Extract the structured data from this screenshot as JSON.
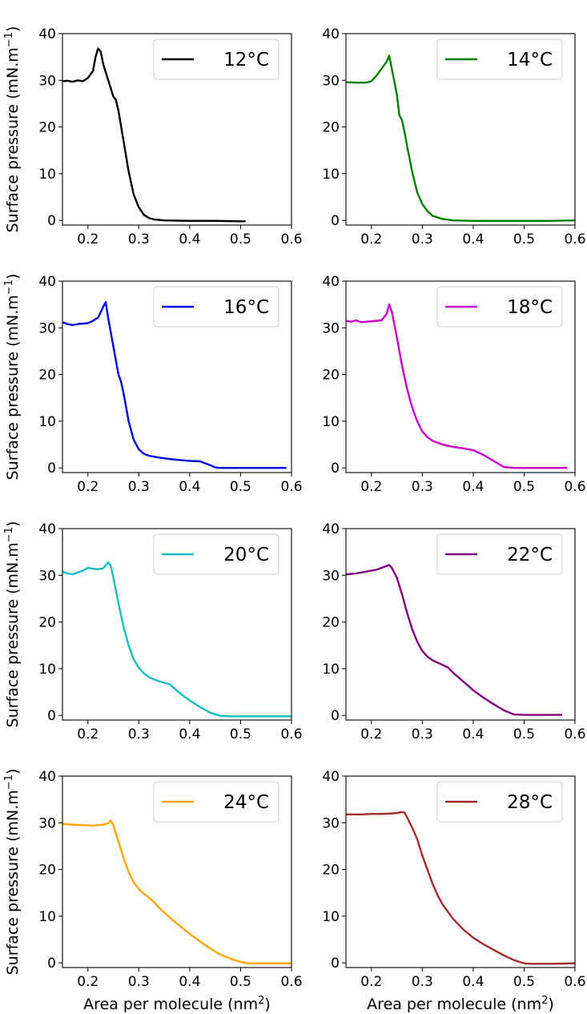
{
  "chart_data": [
    {
      "type": "line",
      "ylabel": "Surface pressure (mN.m",
      "ylabel_sup": "−1",
      "ylabel_close": ")",
      "xlabel": "",
      "xlabel_sup": "",
      "xlabel_close": "",
      "xlim": [
        0.15,
        0.6
      ],
      "ylim": [
        -1,
        40
      ],
      "xticks": [
        "0.2",
        "0.3",
        "0.4",
        "0.5",
        "0.6"
      ],
      "yticks": [
        "0",
        "10",
        "20",
        "30",
        "40"
      ],
      "legend_position": "top-right",
      "series": [
        {
          "name": "12°C",
          "color": "#000000",
          "x": [
            0.15,
            0.16,
            0.17,
            0.18,
            0.19,
            0.2,
            0.21,
            0.215,
            0.22,
            0.225,
            0.23,
            0.24,
            0.25,
            0.255,
            0.26,
            0.27,
            0.28,
            0.29,
            0.3,
            0.31,
            0.32,
            0.33,
            0.35,
            0.4,
            0.45,
            0.5,
            0.51
          ],
          "y": [
            29.8,
            29.9,
            29.7,
            30.0,
            29.8,
            30.5,
            32.0,
            35.0,
            36.8,
            36.2,
            33.5,
            30.0,
            26.5,
            25.8,
            23.5,
            17.0,
            10.5,
            5.5,
            2.8,
            1.2,
            0.5,
            0.2,
            0.0,
            -0.1,
            -0.1,
            -0.2,
            -0.2
          ]
        }
      ]
    },
    {
      "type": "line",
      "ylabel": "",
      "ylabel_sup": "",
      "ylabel_close": "",
      "xlabel": "",
      "xlabel_sup": "",
      "xlabel_close": "",
      "xlim": [
        0.15,
        0.6
      ],
      "ylim": [
        -1,
        40
      ],
      "xticks": [
        "0.2",
        "0.3",
        "0.4",
        "0.5",
        "0.6"
      ],
      "yticks": [
        "0",
        "10",
        "20",
        "30",
        "40"
      ],
      "legend_position": "top-right",
      "series": [
        {
          "name": "14°C",
          "color": "#008000",
          "x": [
            0.15,
            0.17,
            0.19,
            0.2,
            0.21,
            0.22,
            0.23,
            0.235,
            0.24,
            0.25,
            0.255,
            0.26,
            0.265,
            0.27,
            0.28,
            0.29,
            0.3,
            0.31,
            0.32,
            0.34,
            0.36,
            0.4,
            0.45,
            0.5,
            0.55,
            0.6
          ],
          "y": [
            29.6,
            29.5,
            29.5,
            29.8,
            31.0,
            32.5,
            34.0,
            35.3,
            32.5,
            27.0,
            22.5,
            21.5,
            19.0,
            16.0,
            10.5,
            6.0,
            3.5,
            2.0,
            1.0,
            0.3,
            0.0,
            -0.1,
            -0.1,
            -0.1,
            -0.1,
            0.0
          ]
        }
      ]
    },
    {
      "type": "line",
      "ylabel": "Surface pressure (mN.m",
      "ylabel_sup": "−1",
      "ylabel_close": ")",
      "xlabel": "",
      "xlabel_sup": "",
      "xlabel_close": "",
      "xlim": [
        0.15,
        0.6
      ],
      "ylim": [
        -1,
        40
      ],
      "xticks": [
        "0.2",
        "0.3",
        "0.4",
        "0.5",
        "0.6"
      ],
      "yticks": [
        "0",
        "10",
        "20",
        "30",
        "40"
      ],
      "legend_position": "top-right",
      "series": [
        {
          "name": "16°C",
          "color": "#0000e6",
          "x": [
            0.15,
            0.16,
            0.17,
            0.18,
            0.2,
            0.21,
            0.22,
            0.23,
            0.235,
            0.24,
            0.25,
            0.26,
            0.265,
            0.27,
            0.28,
            0.29,
            0.3,
            0.31,
            0.32,
            0.34,
            0.36,
            0.38,
            0.4,
            0.42,
            0.44,
            0.45,
            0.46,
            0.5,
            0.55,
            0.59
          ],
          "y": [
            31.2,
            30.8,
            30.6,
            30.8,
            31.0,
            31.5,
            32.2,
            34.5,
            35.5,
            32.0,
            26.0,
            20.0,
            18.5,
            16.0,
            10.0,
            6.0,
            4.0,
            3.0,
            2.6,
            2.2,
            1.9,
            1.7,
            1.5,
            1.4,
            0.6,
            0.1,
            0.0,
            0.0,
            0.0,
            0.0
          ]
        }
      ]
    },
    {
      "type": "line",
      "ylabel": "",
      "ylabel_sup": "",
      "ylabel_close": "",
      "xlabel": "",
      "xlabel_sup": "",
      "xlabel_close": "",
      "xlim": [
        0.15,
        0.6
      ],
      "ylim": [
        -1,
        40
      ],
      "xticks": [
        "0.2",
        "0.3",
        "0.4",
        "0.5",
        "0.6"
      ],
      "yticks": [
        "0",
        "10",
        "20",
        "30",
        "40"
      ],
      "legend_position": "top-right",
      "series": [
        {
          "name": "18°C",
          "color": "#cc00cc",
          "x": [
            0.15,
            0.16,
            0.17,
            0.18,
            0.2,
            0.22,
            0.23,
            0.235,
            0.24,
            0.25,
            0.26,
            0.27,
            0.28,
            0.29,
            0.3,
            0.31,
            0.32,
            0.34,
            0.36,
            0.38,
            0.4,
            0.42,
            0.44,
            0.46,
            0.48,
            0.52,
            0.56,
            0.585
          ],
          "y": [
            31.5,
            31.3,
            31.6,
            31.2,
            31.4,
            31.6,
            33.0,
            35.0,
            33.5,
            28.0,
            22.0,
            17.0,
            13.0,
            10.0,
            7.8,
            6.6,
            5.8,
            5.0,
            4.5,
            4.2,
            3.8,
            2.8,
            1.5,
            0.2,
            0.0,
            0.0,
            0.0,
            0.0
          ]
        }
      ]
    },
    {
      "type": "line",
      "ylabel": "Surface pressure (mN.m",
      "ylabel_sup": "−1",
      "ylabel_close": ")",
      "xlabel": "",
      "xlabel_sup": "",
      "xlabel_close": "",
      "xlim": [
        0.15,
        0.6
      ],
      "ylim": [
        -1,
        40
      ],
      "xticks": [
        "0.2",
        "0.3",
        "0.4",
        "0.5",
        "0.6"
      ],
      "yticks": [
        "0",
        "10",
        "20",
        "30",
        "40"
      ],
      "legend_position": "top-right",
      "series": [
        {
          "name": "20°C",
          "color": "#17bebf",
          "x": [
            0.15,
            0.16,
            0.17,
            0.18,
            0.19,
            0.2,
            0.21,
            0.22,
            0.23,
            0.24,
            0.245,
            0.25,
            0.26,
            0.27,
            0.28,
            0.29,
            0.3,
            0.31,
            0.32,
            0.33,
            0.34,
            0.35,
            0.36,
            0.37,
            0.38,
            0.4,
            0.42,
            0.44,
            0.46,
            0.48,
            0.52,
            0.56,
            0.6
          ],
          "y": [
            30.8,
            30.4,
            30.2,
            30.6,
            31.0,
            31.6,
            31.4,
            31.3,
            31.5,
            32.8,
            32.0,
            29.5,
            24.0,
            19.0,
            15.0,
            12.0,
            10.2,
            9.0,
            8.2,
            7.7,
            7.3,
            7.0,
            6.7,
            5.8,
            4.8,
            3.2,
            1.8,
            0.6,
            -0.1,
            -0.2,
            -0.2,
            -0.2,
            -0.2
          ]
        }
      ]
    },
    {
      "type": "line",
      "ylabel": "",
      "ylabel_sup": "",
      "ylabel_close": "",
      "xlabel": "",
      "xlabel_sup": "",
      "xlabel_close": "",
      "xlim": [
        0.15,
        0.6
      ],
      "ylim": [
        -1,
        40
      ],
      "xticks": [
        "0.2",
        "0.3",
        "0.4",
        "0.5",
        "0.6"
      ],
      "yticks": [
        "0",
        "10",
        "20",
        "30",
        "40"
      ],
      "legend_position": "top-right",
      "series": [
        {
          "name": "22°C",
          "color": "#800080",
          "x": [
            0.15,
            0.17,
            0.19,
            0.21,
            0.22,
            0.23,
            0.235,
            0.24,
            0.25,
            0.26,
            0.27,
            0.28,
            0.29,
            0.3,
            0.31,
            0.32,
            0.33,
            0.34,
            0.35,
            0.36,
            0.38,
            0.4,
            0.42,
            0.44,
            0.46,
            0.48,
            0.5,
            0.54,
            0.575
          ],
          "y": [
            30.2,
            30.4,
            30.8,
            31.2,
            31.6,
            32.0,
            32.2,
            31.6,
            29.5,
            26.0,
            22.0,
            18.5,
            15.8,
            13.8,
            12.6,
            11.8,
            11.3,
            10.8,
            10.3,
            9.2,
            7.3,
            5.4,
            3.8,
            2.4,
            1.1,
            0.2,
            0.1,
            0.1,
            0.1
          ]
        }
      ]
    },
    {
      "type": "line",
      "ylabel": "Surface pressure (mN.m",
      "ylabel_sup": "−1",
      "ylabel_close": ")",
      "xlabel": "Area per molecule (nm",
      "xlabel_sup": "2",
      "xlabel_close": ")",
      "xlim": [
        0.15,
        0.6
      ],
      "ylim": [
        -1,
        40
      ],
      "xticks": [
        "0.2",
        "0.3",
        "0.4",
        "0.5",
        "0.6"
      ],
      "yticks": [
        "0",
        "10",
        "20",
        "30",
        "40"
      ],
      "legend_position": "top-right",
      "series": [
        {
          "name": "24°C",
          "color": "#ffa500",
          "x": [
            0.15,
            0.17,
            0.19,
            0.21,
            0.22,
            0.23,
            0.24,
            0.245,
            0.25,
            0.26,
            0.27,
            0.28,
            0.29,
            0.3,
            0.31,
            0.32,
            0.33,
            0.34,
            0.36,
            0.38,
            0.4,
            0.42,
            0.44,
            0.46,
            0.48,
            0.5,
            0.515,
            0.55,
            0.6
          ],
          "y": [
            29.8,
            29.6,
            29.5,
            29.4,
            29.5,
            29.6,
            29.9,
            30.5,
            29.5,
            26.0,
            22.5,
            19.5,
            17.2,
            15.8,
            14.8,
            14.0,
            13.0,
            11.8,
            9.8,
            8.0,
            6.2,
            4.6,
            3.1,
            1.8,
            0.9,
            0.2,
            -0.1,
            -0.1,
            -0.1
          ]
        }
      ]
    },
    {
      "type": "line",
      "ylabel": "",
      "ylabel_sup": "",
      "ylabel_close": "",
      "xlabel": "Area per molecule (nm",
      "xlabel_sup": "2",
      "xlabel_close": ")",
      "xlim": [
        0.15,
        0.6
      ],
      "ylim": [
        -1,
        40
      ],
      "xticks": [
        "0.2",
        "0.3",
        "0.4",
        "0.5",
        "0.6"
      ],
      "yticks": [
        "0",
        "10",
        "20",
        "30",
        "40"
      ],
      "legend_position": "top-right",
      "series": [
        {
          "name": "28°C",
          "color": "#a52a2a",
          "x": [
            0.15,
            0.18,
            0.2,
            0.22,
            0.24,
            0.25,
            0.26,
            0.265,
            0.27,
            0.28,
            0.29,
            0.3,
            0.31,
            0.32,
            0.33,
            0.34,
            0.36,
            0.38,
            0.4,
            0.42,
            0.44,
            0.46,
            0.48,
            0.5,
            0.51,
            0.55,
            0.6
          ],
          "y": [
            31.8,
            31.8,
            31.9,
            31.9,
            32.0,
            32.1,
            32.3,
            32.2,
            31.2,
            29.0,
            26.5,
            23.0,
            20.0,
            17.0,
            14.5,
            12.5,
            9.5,
            7.2,
            5.4,
            4.0,
            2.8,
            1.6,
            0.6,
            -0.1,
            -0.2,
            -0.2,
            -0.1
          ]
        }
      ]
    }
  ]
}
